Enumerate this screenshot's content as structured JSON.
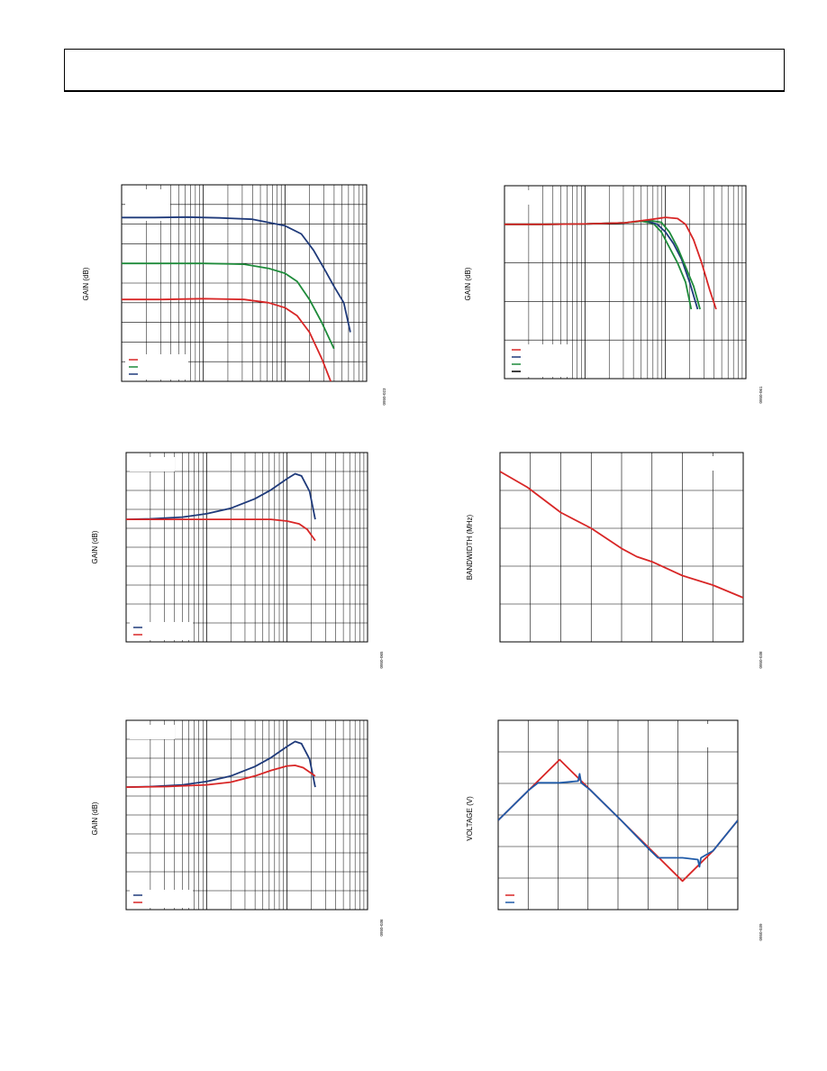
{
  "header": {
    "title": ""
  },
  "chart_data": [
    {
      "type": "line",
      "ylabel": "GAIN (dB)",
      "figure_code": "0950-023",
      "xscale": "log",
      "xdecades": 3,
      "grid": true,
      "legend_placement": "bottom-left",
      "series": [
        {
          "color": "#1f3a7a",
          "points": [
            [
              0,
              50
            ],
            [
              0.4,
              50
            ],
            [
              0.8,
              50.3
            ],
            [
              1.2,
              49.8
            ],
            [
              1.6,
              49
            ],
            [
              2.0,
              45
            ],
            [
              2.2,
              40
            ],
            [
              2.35,
              30
            ],
            [
              2.5,
              17
            ],
            [
              2.6,
              8
            ],
            [
              2.72,
              -2
            ],
            [
              2.8,
              -20
            ]
          ]
        },
        {
          "color": "#1e8b3a",
          "points": [
            [
              0,
              22
            ],
            [
              0.5,
              22
            ],
            [
              1.0,
              22
            ],
            [
              1.5,
              21.5
            ],
            [
              1.8,
              19
            ],
            [
              2.0,
              16
            ],
            [
              2.15,
              11
            ],
            [
              2.3,
              0
            ],
            [
              2.45,
              -14
            ],
            [
              2.6,
              -30
            ]
          ]
        },
        {
          "color": "#d82626",
          "points": [
            [
              0,
              0
            ],
            [
              0.5,
              0
            ],
            [
              1.0,
              0.5
            ],
            [
              1.5,
              0
            ],
            [
              1.8,
              -2
            ],
            [
              2.0,
              -5
            ],
            [
              2.15,
              -10
            ],
            [
              2.3,
              -20
            ],
            [
              2.45,
              -36
            ],
            [
              2.6,
              -55
            ]
          ]
        }
      ],
      "legend": [
        {
          "color": "#d82626"
        },
        {
          "color": "#1e8b3a"
        },
        {
          "color": "#1f3a7a"
        }
      ]
    },
    {
      "type": "line",
      "ylabel": "GAIN (dB)",
      "figure_code": "0950-061",
      "xscale": "log",
      "xdecades": 3,
      "grid": true,
      "legend_placement": "bottom-left",
      "series": [
        {
          "color": "#1e8b3a",
          "points": [
            [
              0,
              0
            ],
            [
              0.3,
              0
            ],
            [
              0.5,
              0
            ],
            [
              1.0,
              0.1
            ],
            [
              1.5,
              0.4
            ],
            [
              1.7,
              0.8
            ],
            [
              1.85,
              0.2
            ],
            [
              1.95,
              -2
            ],
            [
              2.05,
              -6
            ],
            [
              2.15,
              -10
            ],
            [
              2.25,
              -15
            ],
            [
              2.32,
              -22
            ]
          ]
        },
        {
          "color": "#1f3a7a",
          "points": [
            [
              0,
              0
            ],
            [
              0.3,
              0
            ],
            [
              0.5,
              0
            ],
            [
              1.0,
              0.1
            ],
            [
              1.5,
              0.4
            ],
            [
              1.75,
              1.0
            ],
            [
              1.9,
              0
            ],
            [
              2.0,
              -2
            ],
            [
              2.1,
              -5
            ],
            [
              2.2,
              -9
            ],
            [
              2.3,
              -15
            ],
            [
              2.4,
              -22
            ]
          ]
        },
        {
          "color": "#1e8b3a",
          "points": [
            [
              0,
              0
            ],
            [
              0.5,
              0
            ],
            [
              1.0,
              0.1
            ],
            [
              1.5,
              0.4
            ],
            [
              1.8,
              1.0
            ],
            [
              1.95,
              0.5
            ],
            [
              2.05,
              -2
            ],
            [
              2.15,
              -6
            ],
            [
              2.25,
              -11
            ],
            [
              2.35,
              -16
            ],
            [
              2.43,
              -22
            ]
          ]
        },
        {
          "color": "#d82626",
          "points": [
            [
              0,
              0
            ],
            [
              0.5,
              0
            ],
            [
              1.0,
              0.1
            ],
            [
              1.5,
              0.4
            ],
            [
              1.8,
              1.2
            ],
            [
              2.0,
              1.8
            ],
            [
              2.15,
              1.5
            ],
            [
              2.25,
              0
            ],
            [
              2.35,
              -4
            ],
            [
              2.45,
              -10
            ],
            [
              2.55,
              -17
            ],
            [
              2.63,
              -22
            ]
          ]
        }
      ],
      "legend": [
        {
          "color": "#d82626"
        },
        {
          "color": "#1f3a7a"
        },
        {
          "color": "#1e8b3a"
        },
        {
          "color": "#000000"
        }
      ]
    },
    {
      "type": "line",
      "ylabel": "GAIN (dB)",
      "figure_code": "0950-065",
      "xscale": "log",
      "xdecades": 3,
      "grid": true,
      "legend_placement": "bottom-left",
      "series": [
        {
          "color": "#1f3a7a",
          "points": [
            [
              0,
              0
            ],
            [
              0.3,
              0.1
            ],
            [
              0.7,
              0.4
            ],
            [
              1.0,
              1
            ],
            [
              1.3,
              2
            ],
            [
              1.6,
              3.7
            ],
            [
              1.8,
              5.3
            ],
            [
              2.0,
              7.3
            ],
            [
              2.1,
              8.2
            ],
            [
              2.18,
              7.8
            ],
            [
              2.28,
              5
            ],
            [
              2.35,
              0
            ]
          ]
        },
        {
          "color": "#d82626",
          "points": [
            [
              0,
              0
            ],
            [
              0.5,
              0
            ],
            [
              1.0,
              0
            ],
            [
              1.5,
              0
            ],
            [
              1.8,
              0
            ],
            [
              2.0,
              -0.3
            ],
            [
              2.15,
              -0.8
            ],
            [
              2.25,
              -1.8
            ],
            [
              2.35,
              -3.8
            ]
          ]
        }
      ],
      "legend": [
        {
          "color": "#1f3a7a"
        },
        {
          "color": "#d82626"
        }
      ]
    },
    {
      "type": "line",
      "ylabel": "BANDWIDTH (MHz)",
      "figure_code": "0950-038",
      "xscale": "linear",
      "grid": true,
      "series": [
        {
          "color": "#d82626",
          "points": [
            [
              0,
              4.2
            ],
            [
              0.9,
              3.95
            ],
            [
              2.0,
              3.55
            ],
            [
              3.0,
              3.3
            ],
            [
              4.0,
              2.98
            ],
            [
              4.5,
              2.85
            ],
            [
              5.0,
              2.77
            ],
            [
              6.0,
              2.55
            ],
            [
              7.0,
              2.4
            ],
            [
              8.0,
              2.2
            ]
          ]
        }
      ]
    },
    {
      "type": "line",
      "ylabel": "GAIN (dB)",
      "figure_code": "0950-036",
      "xscale": "log",
      "xdecades": 3,
      "grid": true,
      "legend_placement": "bottom-left",
      "series": [
        {
          "color": "#1f3a7a",
          "points": [
            [
              0,
              0
            ],
            [
              0.3,
              0.1
            ],
            [
              0.7,
              0.4
            ],
            [
              1.0,
              1
            ],
            [
              1.3,
              2
            ],
            [
              1.6,
              3.7
            ],
            [
              1.8,
              5.3
            ],
            [
              2.0,
              7.3
            ],
            [
              2.1,
              8.2
            ],
            [
              2.18,
              7.8
            ],
            [
              2.28,
              5
            ],
            [
              2.35,
              0
            ]
          ]
        },
        {
          "color": "#d82626",
          "points": [
            [
              0,
              0
            ],
            [
              0.5,
              0.1
            ],
            [
              1.0,
              0.4
            ],
            [
              1.3,
              0.9
            ],
            [
              1.6,
              2
            ],
            [
              1.8,
              3
            ],
            [
              2.0,
              3.8
            ],
            [
              2.1,
              3.9
            ],
            [
              2.2,
              3.5
            ],
            [
              2.3,
              2.5
            ],
            [
              2.35,
              2
            ]
          ]
        }
      ],
      "legend": [
        {
          "color": "#1f3a7a"
        },
        {
          "color": "#d82626"
        }
      ]
    },
    {
      "type": "line",
      "ylabel": "VOLTAGE (V)",
      "figure_code": "0950-039",
      "xscale": "linear",
      "grid": true,
      "legend_placement": "bottom-left",
      "series": [
        {
          "color": "#d82626",
          "points": [
            [
              0,
              0
            ],
            [
              1,
              1.7
            ],
            [
              2,
              3.4
            ],
            [
              3,
              1.7
            ],
            [
              4,
              0
            ],
            [
              5,
              -1.7
            ],
            [
              6,
              -3.4
            ],
            [
              7,
              -1.7
            ],
            [
              7.8,
              0
            ]
          ]
        },
        {
          "color": "#1f5aa8",
          "points": [
            [
              0,
              0
            ],
            [
              1,
              1.7
            ],
            [
              1.3,
              2.1
            ],
            [
              2.0,
              2.1
            ],
            [
              2.6,
              2.2
            ],
            [
              2.65,
              2.6
            ],
            [
              2.7,
              2.1
            ],
            [
              3,
              1.7
            ],
            [
              4,
              0
            ],
            [
              4.9,
              -1.6
            ],
            [
              5.2,
              -2.1
            ],
            [
              6.0,
              -2.1
            ],
            [
              6.5,
              -2.2
            ],
            [
              6.55,
              -2.6
            ],
            [
              6.6,
              -2.1
            ],
            [
              7,
              -1.7
            ],
            [
              7.8,
              0
            ]
          ]
        }
      ],
      "legend": [
        {
          "color": "#d82626"
        },
        {
          "color": "#1f5aa8"
        }
      ]
    }
  ]
}
